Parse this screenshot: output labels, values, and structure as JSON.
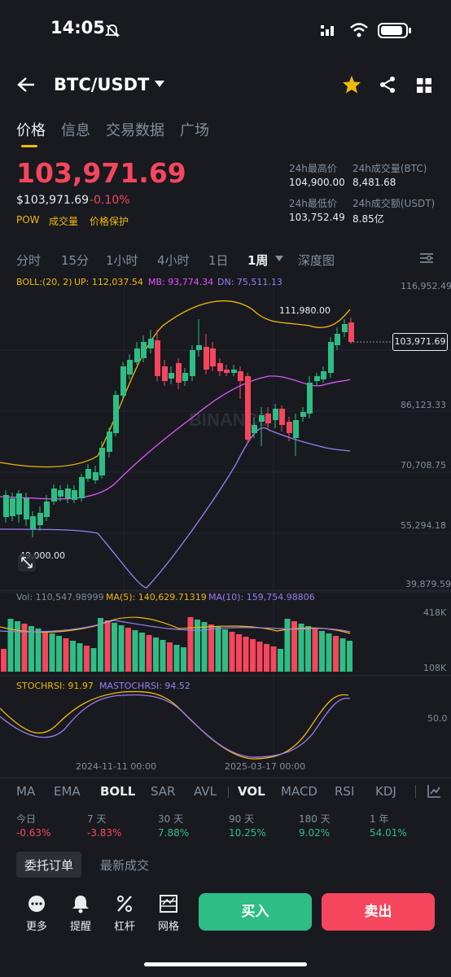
{
  "status_bar": {
    "time": "14:05"
  },
  "header": {
    "pair": "BTC/USDT"
  },
  "tabs": [
    {
      "label": "价格"
    },
    {
      "label": "信息"
    },
    {
      "label": "交易数据"
    },
    {
      "label": "广场"
    }
  ],
  "price": {
    "last": "103,971.69",
    "usd": "$103,971.69",
    "change": "-0.10%",
    "tags": [
      "POW",
      "成交量",
      "价格保护"
    ]
  },
  "stats": {
    "high_label": "24h最高价",
    "high": "104,900.00",
    "vol_btc_label": "24h成交量(BTC)",
    "vol_btc": "8,481.68",
    "low_label": "24h最低价",
    "low": "103,752.49",
    "vol_usdt_label": "24h成交额(USDT)",
    "vol_usdt": "8.85亿"
  },
  "timeframes": [
    "分时",
    "15分",
    "1小时",
    "4小时",
    "1日",
    "1周",
    "深度图"
  ],
  "boll": {
    "label": "BOLL:(20, 2)",
    "up": "UP: 112,037.54",
    "mb": "MB: 93,774.34",
    "dn": "DN: 75,511.13"
  },
  "price_axis": [
    "116,952.49",
    "86,123.33",
    "70,708.75",
    "55,294.18",
    "39,879.59"
  ],
  "annotations": {
    "high": "111,980.00",
    "low": "49,000.00",
    "current": "103,971.69"
  },
  "watermark": "BINANCE",
  "volume": {
    "vol": "Vol: 110,547.98999",
    "ma5": "MA(5): 140,629.71319",
    "ma10": "MA(10): 159,754.98806",
    "axis_top": "418K",
    "axis_bottom": "108K"
  },
  "stochrsi": {
    "label": "STOCHRSI: 91.97",
    "ma": "MASTOCHRSI: 94.52",
    "axis": "50.0"
  },
  "date_axis": [
    "2024-11-11 00:00",
    "2025-03-17 00:00"
  ],
  "indicator_tabs": [
    "MA",
    "EMA",
    "BOLL",
    "SAR",
    "AVL",
    "VOL",
    "MACD",
    "RSI",
    "KDJ"
  ],
  "performance": [
    {
      "label": "今日",
      "value": "-0.63%"
    },
    {
      "label": "7 天",
      "value": "-3.83%"
    },
    {
      "label": "30 天",
      "value": "7.88%"
    },
    {
      "label": "90 天",
      "value": "10.25%"
    },
    {
      "label": "180 天",
      "value": "9.02%"
    },
    {
      "label": "1 年",
      "value": "54.01%"
    }
  ],
  "order_tabs": [
    "委托订单",
    "最新成交"
  ],
  "bottom_nav": [
    {
      "label": "更多",
      "icon": "more-icon"
    },
    {
      "label": "提醒",
      "icon": "bell-icon"
    },
    {
      "label": "杠杆",
      "icon": "leverage-icon"
    },
    {
      "label": "网格",
      "icon": "grid-bot-icon"
    }
  ],
  "buttons": {
    "buy": "买入",
    "sell": "卖出"
  },
  "colors": {
    "up": "#2ebd85",
    "down": "#f6465d",
    "accent": "#f0b90b",
    "bg": "#181a20"
  }
}
